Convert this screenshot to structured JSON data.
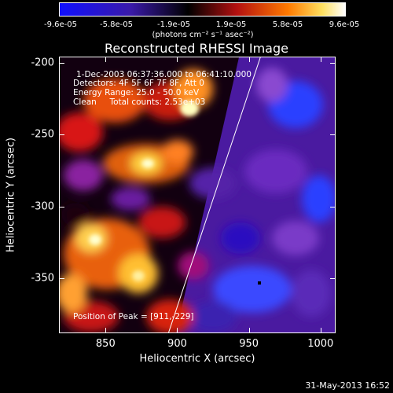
{
  "colorbar": {
    "ticks": [
      "-9.6e-05",
      "-5.8e-05",
      "-1.9e-05",
      "1.9e-05",
      "5.8e-05",
      "9.6e-05"
    ],
    "units": "(photons cm⁻² s⁻¹ asec⁻²)",
    "range": [
      -9.6e-05,
      9.6e-05
    ]
  },
  "annotations": {
    "time_range": "1-Dec-2003 06:37:36.000 to 06:41:10.000",
    "detectors": "Detectors: 4F 5F 6F 7F 8F, Att 0",
    "energy": "Energy Range: 25.0 - 50.0 keV",
    "clean": "Clean     Total counts: 2.53e+03",
    "peak": "Position of Peak = [911,-229]"
  },
  "footer": "31-May-2013 16:52",
  "chart_data": {
    "type": "heatmap",
    "title": "Reconstructed RHESSI Image",
    "xlabel": "Heliocentric X (arcsec)",
    "ylabel": "Heliocentric Y (arcsec)",
    "xlim": [
      818,
      1010
    ],
    "ylim": [
      -388,
      -196
    ],
    "x_ticks": [
      "850",
      "900",
      "950",
      "1000"
    ],
    "x_tick_values": [
      850,
      900,
      950,
      1000
    ],
    "y_ticks": [
      "-200",
      "-250",
      "-300",
      "-350"
    ],
    "y_tick_values": [
      -200,
      -250,
      -300,
      -350
    ],
    "limb_line": [
      [
        894,
        -388
      ],
      [
        958,
        -196
      ]
    ],
    "peak": [
      911,
      -229
    ],
    "color_table": "RHESSI blue-purple-red-yellow-white"
  }
}
